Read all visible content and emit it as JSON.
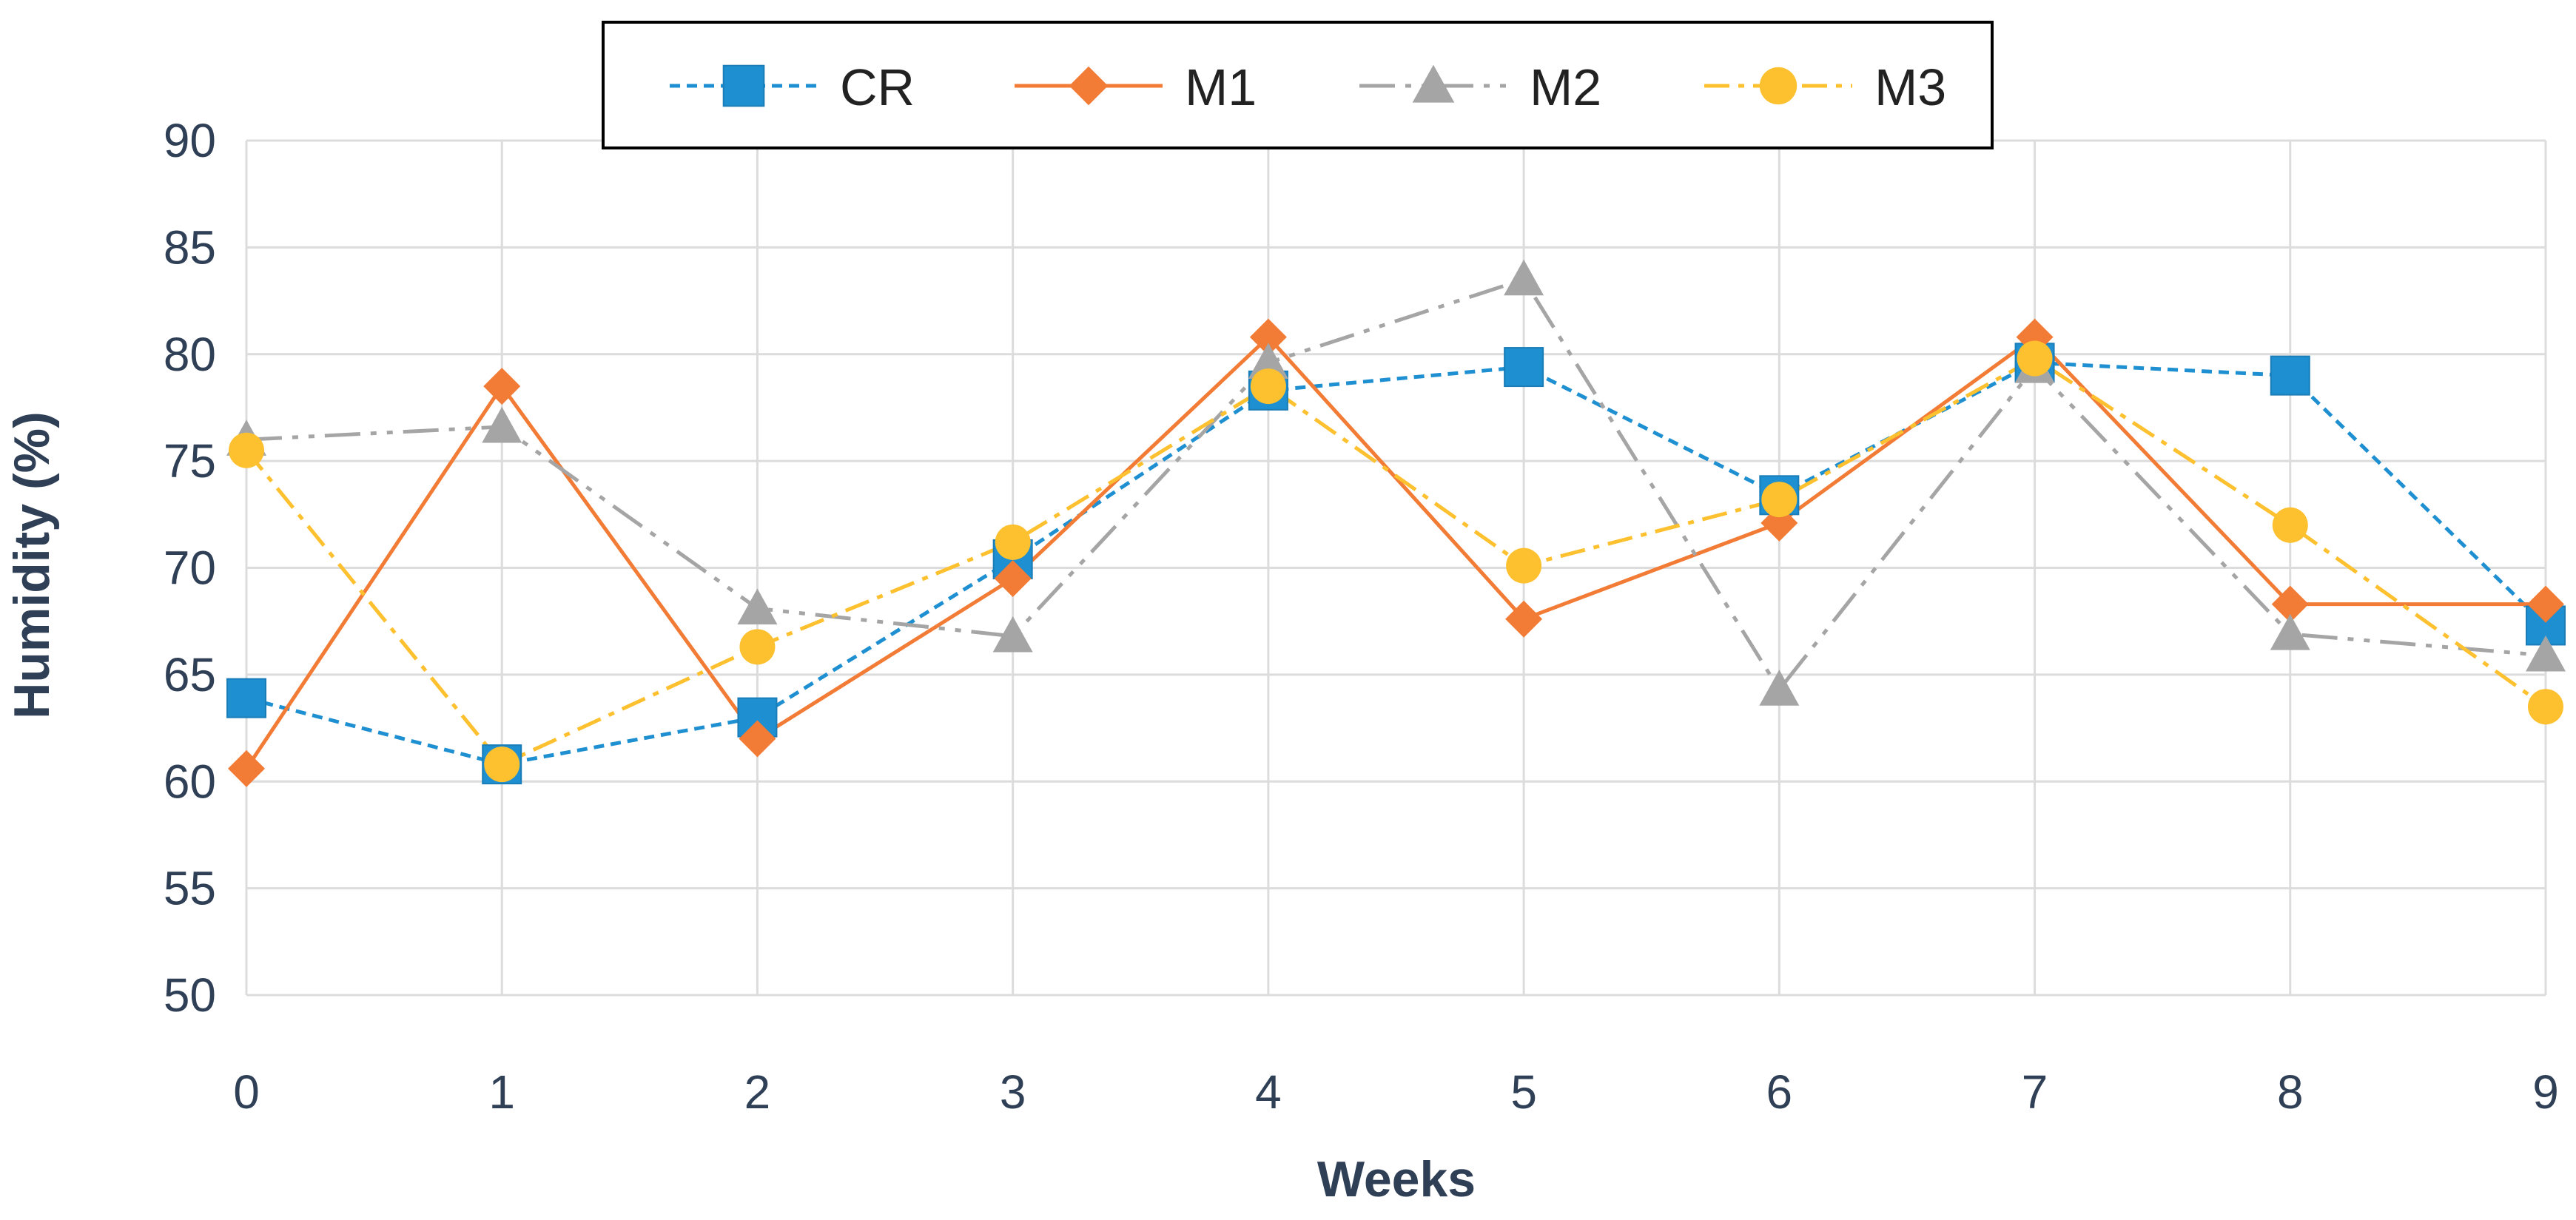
{
  "chart_data": {
    "type": "line",
    "title": "",
    "xlabel": "Weeks",
    "ylabel": "Humidity (%)",
    "x": [
      0,
      1,
      2,
      3,
      4,
      5,
      6,
      7,
      8,
      9
    ],
    "ylim": [
      50,
      90
    ],
    "yticks": [
      50,
      55,
      60,
      65,
      70,
      75,
      80,
      85,
      90
    ],
    "grid": true,
    "legend_position": "top-center",
    "series": [
      {
        "name": "CR",
        "color": "#1e8fd0",
        "dash": "dashed",
        "marker": "square",
        "values": [
          63.9,
          60.8,
          63.0,
          70.4,
          78.3,
          79.4,
          73.4,
          79.6,
          79.0,
          67.3
        ]
      },
      {
        "name": "M1",
        "color": "#f27b35",
        "dash": "solid",
        "marker": "diamond",
        "values": [
          60.6,
          78.5,
          62.0,
          69.5,
          80.8,
          67.6,
          72.1,
          80.8,
          68.3,
          68.3
        ]
      },
      {
        "name": "M2",
        "color": "#a5a5a5",
        "dash": "dashdotdot",
        "marker": "triangle",
        "values": [
          76.0,
          76.6,
          68.1,
          66.8,
          79.6,
          83.5,
          64.3,
          79.4,
          66.9,
          65.9
        ]
      },
      {
        "name": "M3",
        "color": "#fdc02f",
        "dash": "dashdot",
        "marker": "circle",
        "values": [
          75.5,
          60.8,
          66.3,
          71.2,
          78.5,
          70.1,
          73.2,
          79.8,
          72.0,
          63.5
        ]
      }
    ]
  }
}
